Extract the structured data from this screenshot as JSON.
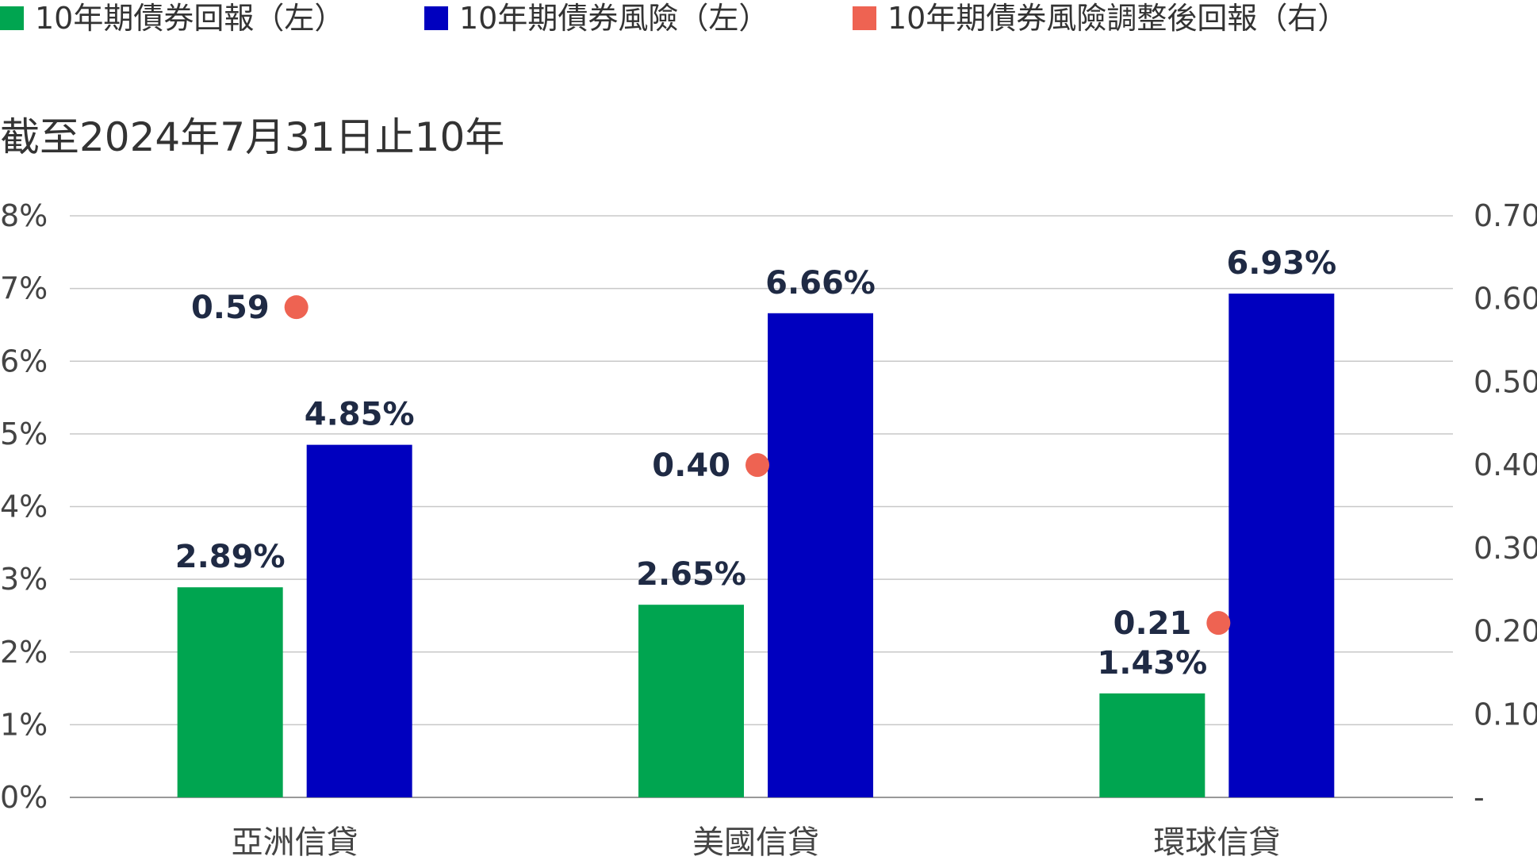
{
  "chart_data": {
    "type": "bar",
    "subtitle": "截至2024年7月31日止10年",
    "categories": [
      "亞洲信貸",
      "美國信貸",
      "環球信貸"
    ],
    "series": [
      {
        "name": "10年期債券回報（左）",
        "kind": "bar",
        "axis": "left",
        "color": "#00a550",
        "values": [
          2.89,
          2.65,
          1.43
        ],
        "labels": [
          "2.89%",
          "2.65%",
          "1.43%"
        ]
      },
      {
        "name": "10年期債券風險（左）",
        "kind": "bar",
        "axis": "left",
        "color": "#0000bf",
        "values": [
          4.85,
          6.66,
          6.93
        ],
        "labels": [
          "4.85%",
          "6.66%",
          "6.93%"
        ]
      },
      {
        "name": "10年期債券風險調整後回報（右）",
        "kind": "scatter",
        "axis": "right",
        "color": "#ee6352",
        "values": [
          0.59,
          0.4,
          0.21
        ],
        "labels": [
          "0.59",
          "0.40",
          "0.21"
        ]
      }
    ],
    "y_left": {
      "min": 0,
      "max": 8,
      "ticks": [
        "0%",
        "1%",
        "2%",
        "3%",
        "4%",
        "5%",
        "6%",
        "7%",
        "8%"
      ]
    },
    "y_right": {
      "min": 0,
      "max": 0.7,
      "ticks": [
        "-",
        "0.10",
        "0.20",
        "0.30",
        "0.40",
        "0.50",
        "0.60",
        "0.70"
      ]
    },
    "legend_position": "top-left",
    "grid": true
  }
}
